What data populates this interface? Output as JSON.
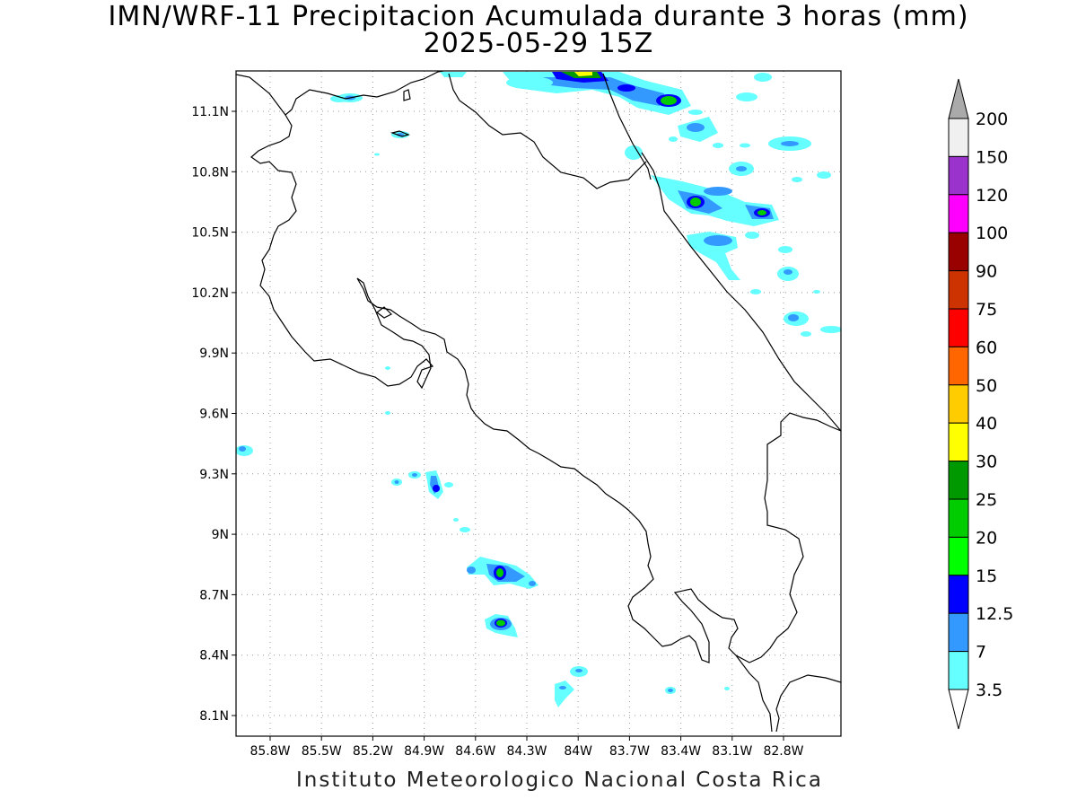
{
  "title": "IMN/WRF-11 Precipitacion Acumulada durante 3 horas (mm)",
  "subtitle": "2025-05-29 15Z",
  "footer": "Instituto Meteorologico Nacional Costa Rica",
  "lat_labels": [
    "11.1N",
    "10.8N",
    "10.5N",
    "10.2N",
    "9.9N",
    "9.6N",
    "9.3N",
    "9N",
    "8.7N",
    "8.4N",
    "8.1N"
  ],
  "lon_labels": [
    "85.8W",
    "85.5W",
    "85.2W",
    "84.9W",
    "84.6W",
    "84.3W",
    "84W",
    "83.7W",
    "83.4W",
    "83.1W",
    "82.8W"
  ],
  "colorbar": {
    "labels": [
      "200",
      "150",
      "120",
      "100",
      "90",
      "75",
      "60",
      "50",
      "40",
      "30",
      "25",
      "20",
      "15",
      "12.5",
      "7",
      "3.5"
    ],
    "colors": [
      "#f0f0f0",
      "#9933cc",
      "#ff00ff",
      "#990000",
      "#cc3300",
      "#ff0000",
      "#ff6600",
      "#ffcc00",
      "#ffff00",
      "#009900",
      "#00cc00",
      "#00ff00",
      "#0000ff",
      "#3399ff",
      "#66ffff"
    ],
    "top_triangle": "#aaaaaa",
    "bottom_triangle": "#ffffff"
  }
}
